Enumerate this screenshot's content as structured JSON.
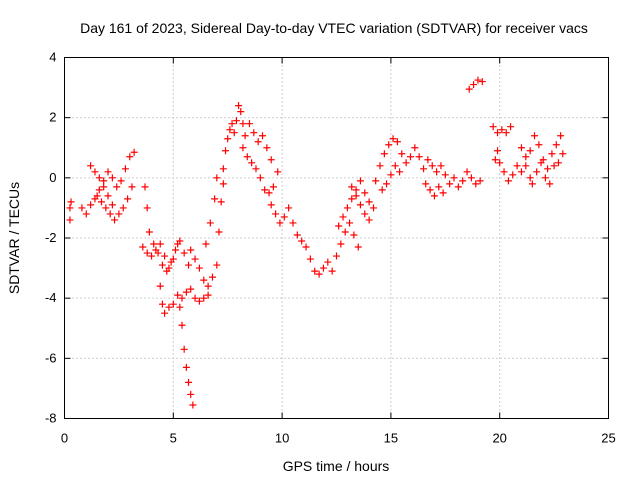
{
  "chart_data": {
    "type": "scatter",
    "title": "Day 161 of 2023, Sidereal Day-to-day VTEC variation (SDTVAR) for receiver vacs",
    "xlabel": "GPS time / hours",
    "ylabel": "SDTVAR / TECUs",
    "xlim": [
      0,
      25
    ],
    "ylim": [
      -8,
      4
    ],
    "xticks": [
      0,
      5,
      10,
      15,
      20,
      25
    ],
    "yticks": [
      -8,
      -6,
      -4,
      -2,
      0,
      2,
      4
    ],
    "xtick_labels": [
      "0",
      "5",
      "10",
      "15",
      "20",
      "25"
    ],
    "ytick_labels": [
      "-8",
      "-6",
      "-4",
      "-2",
      "0",
      "2",
      "4"
    ],
    "grid": true,
    "marker": "+",
    "series": [
      {
        "name": "SDTVAR",
        "color": "#ff0000",
        "points": [
          [
            0.25,
            -1.4
          ],
          [
            0.25,
            -1.0
          ],
          [
            0.3,
            -0.8
          ],
          [
            0.8,
            -1.0
          ],
          [
            1.0,
            -1.2
          ],
          [
            1.2,
            -0.9
          ],
          [
            1.4,
            -0.7
          ],
          [
            1.6,
            -0.4
          ],
          [
            1.8,
            -0.1
          ],
          [
            2.0,
            0.2
          ],
          [
            2.2,
            0.0
          ],
          [
            2.4,
            -0.3
          ],
          [
            2.6,
            -0.1
          ],
          [
            2.8,
            0.3
          ],
          [
            3.0,
            0.7
          ],
          [
            3.2,
            0.85
          ],
          [
            1.5,
            -0.6
          ],
          [
            1.7,
            -0.8
          ],
          [
            1.9,
            -1.0
          ],
          [
            2.1,
            -1.2
          ],
          [
            2.3,
            -1.4
          ],
          [
            2.5,
            -1.2
          ],
          [
            2.7,
            -1.0
          ],
          [
            2.9,
            -0.7
          ],
          [
            3.1,
            -0.3
          ],
          [
            1.2,
            0.4
          ],
          [
            1.4,
            0.2
          ],
          [
            1.6,
            0.0
          ],
          [
            1.8,
            -0.3
          ],
          [
            2.0,
            -0.6
          ],
          [
            2.2,
            -0.9
          ],
          [
            3.7,
            -0.3
          ],
          [
            3.8,
            -1.0
          ],
          [
            3.9,
            -1.8
          ],
          [
            4.1,
            -2.2
          ],
          [
            4.3,
            -2.5
          ],
          [
            4.5,
            -2.9
          ],
          [
            4.7,
            -3.1
          ],
          [
            4.9,
            -2.8
          ],
          [
            5.1,
            -2.4
          ],
          [
            5.3,
            -2.1
          ],
          [
            5.5,
            -2.5
          ],
          [
            5.7,
            -2.9
          ],
          [
            3.6,
            -2.3
          ],
          [
            3.8,
            -2.5
          ],
          [
            4.0,
            -2.6
          ],
          [
            4.2,
            -2.4
          ],
          [
            4.4,
            -2.2
          ],
          [
            4.6,
            -2.6
          ],
          [
            4.8,
            -3.0
          ],
          [
            5.0,
            -2.7
          ],
          [
            5.2,
            -2.2
          ],
          [
            4.4,
            -3.6
          ],
          [
            4.5,
            -4.2
          ],
          [
            4.6,
            -4.5
          ],
          [
            4.8,
            -4.3
          ],
          [
            5.0,
            -4.2
          ],
          [
            5.2,
            -3.9
          ],
          [
            5.4,
            -4.0
          ],
          [
            5.6,
            -3.8
          ],
          [
            5.8,
            -3.7
          ],
          [
            6.0,
            -4.0
          ],
          [
            6.2,
            -4.1
          ],
          [
            6.4,
            -4.0
          ],
          [
            6.6,
            -3.9
          ],
          [
            5.3,
            -4.3
          ],
          [
            5.4,
            -4.9
          ],
          [
            5.5,
            -5.7
          ],
          [
            5.6,
            -6.3
          ],
          [
            5.7,
            -6.8
          ],
          [
            5.8,
            -7.2
          ],
          [
            5.9,
            -7.55
          ],
          [
            5.8,
            -2.4
          ],
          [
            6.0,
            -2.7
          ],
          [
            6.2,
            -3.0
          ],
          [
            6.4,
            -3.4
          ],
          [
            6.6,
            -3.6
          ],
          [
            6.8,
            -3.3
          ],
          [
            7.0,
            -2.9
          ],
          [
            7.1,
            -1.8
          ],
          [
            7.2,
            -0.8
          ],
          [
            7.3,
            -0.2
          ],
          [
            6.5,
            -2.2
          ],
          [
            6.7,
            -1.5
          ],
          [
            6.9,
            -0.7
          ],
          [
            7.0,
            0.0
          ],
          [
            7.3,
            0.3
          ],
          [
            7.4,
            0.9
          ],
          [
            7.5,
            1.3
          ],
          [
            7.6,
            1.6
          ],
          [
            7.7,
            1.8
          ],
          [
            7.8,
            1.5
          ],
          [
            7.9,
            1.9
          ],
          [
            8.0,
            2.4
          ],
          [
            8.1,
            2.2
          ],
          [
            8.2,
            1.8
          ],
          [
            8.3,
            1.4
          ],
          [
            8.5,
            1.8
          ],
          [
            8.7,
            1.5
          ],
          [
            8.9,
            1.2
          ],
          [
            9.1,
            1.4
          ],
          [
            9.3,
            1.0
          ],
          [
            9.5,
            0.6
          ],
          [
            8.2,
            1.0
          ],
          [
            8.4,
            0.7
          ],
          [
            8.6,
            0.5
          ],
          [
            8.8,
            0.3
          ],
          [
            9.0,
            0.0
          ],
          [
            9.2,
            -0.4
          ],
          [
            9.4,
            -0.5
          ],
          [
            9.6,
            -0.3
          ],
          [
            9.8,
            0.2
          ],
          [
            9.5,
            -0.9
          ],
          [
            9.7,
            -1.2
          ],
          [
            9.9,
            -1.5
          ],
          [
            10.1,
            -1.3
          ],
          [
            10.3,
            -1.0
          ],
          [
            10.5,
            -1.5
          ],
          [
            10.7,
            -1.9
          ],
          [
            10.9,
            -2.1
          ],
          [
            11.1,
            -2.3
          ],
          [
            11.3,
            -2.7
          ],
          [
            11.5,
            -3.1
          ],
          [
            11.7,
            -3.2
          ],
          [
            11.9,
            -3.0
          ],
          [
            12.1,
            -2.8
          ],
          [
            12.3,
            -3.1
          ],
          [
            12.5,
            -2.6
          ],
          [
            12.7,
            -2.2
          ],
          [
            12.9,
            -1.8
          ],
          [
            13.1,
            -1.5
          ],
          [
            13.3,
            -1.9
          ],
          [
            13.5,
            -2.3
          ],
          [
            12.6,
            -1.6
          ],
          [
            12.8,
            -1.3
          ],
          [
            13.0,
            -1.0
          ],
          [
            13.2,
            -0.7
          ],
          [
            13.4,
            -0.4
          ],
          [
            13.6,
            -0.1
          ],
          [
            13.8,
            -0.5
          ],
          [
            14.0,
            -0.8
          ],
          [
            14.2,
            -1.0
          ],
          [
            13.2,
            -0.3
          ],
          [
            13.4,
            -0.6
          ],
          [
            13.6,
            -0.9
          ],
          [
            13.8,
            -1.2
          ],
          [
            14.0,
            -1.4
          ],
          [
            14.3,
            -0.1
          ],
          [
            14.5,
            0.4
          ],
          [
            14.7,
            0.8
          ],
          [
            14.9,
            1.1
          ],
          [
            15.1,
            1.3
          ],
          [
            15.3,
            1.2
          ],
          [
            15.5,
            0.8
          ],
          [
            15.7,
            0.5
          ],
          [
            15.9,
            0.7
          ],
          [
            16.1,
            1.0
          ],
          [
            16.3,
            0.7
          ],
          [
            14.6,
            -0.4
          ],
          [
            14.8,
            -0.2
          ],
          [
            15.0,
            0.1
          ],
          [
            15.2,
            0.4
          ],
          [
            15.4,
            0.2
          ],
          [
            16.5,
            0.3
          ],
          [
            16.7,
            0.6
          ],
          [
            16.9,
            0.4
          ],
          [
            17.1,
            0.2
          ],
          [
            17.3,
            0.4
          ],
          [
            17.5,
            0.1
          ],
          [
            17.7,
            -0.2
          ],
          [
            17.9,
            0.0
          ],
          [
            18.1,
            -0.3
          ],
          [
            18.3,
            -0.1
          ],
          [
            18.5,
            0.2
          ],
          [
            18.7,
            0.0
          ],
          [
            18.9,
            -0.2
          ],
          [
            19.1,
            -0.1
          ],
          [
            16.6,
            -0.2
          ],
          [
            16.8,
            -0.4
          ],
          [
            17.0,
            -0.6
          ],
          [
            17.2,
            -0.3
          ],
          [
            17.4,
            -0.5
          ],
          [
            18.6,
            2.95
          ],
          [
            18.8,
            3.1
          ],
          [
            19.0,
            3.25
          ],
          [
            19.2,
            3.2
          ],
          [
            19.7,
            1.7
          ],
          [
            19.9,
            1.5
          ],
          [
            20.1,
            1.6
          ],
          [
            20.3,
            1.5
          ],
          [
            20.5,
            1.7
          ],
          [
            19.8,
            0.6
          ],
          [
            19.9,
            0.9
          ],
          [
            20.0,
            0.5
          ],
          [
            20.2,
            0.2
          ],
          [
            20.4,
            -0.1
          ],
          [
            20.6,
            0.1
          ],
          [
            20.8,
            0.4
          ],
          [
            21.0,
            0.2
          ],
          [
            21.2,
            0.4
          ],
          [
            21.4,
            0.0
          ],
          [
            21.0,
            1.0
          ],
          [
            21.2,
            0.7
          ],
          [
            21.4,
            0.9
          ],
          [
            21.6,
            1.4
          ],
          [
            21.8,
            1.1
          ],
          [
            22.0,
            0.6
          ],
          [
            22.2,
            0.3
          ],
          [
            22.4,
            0.8
          ],
          [
            22.6,
            1.1
          ],
          [
            22.8,
            1.4
          ],
          [
            21.5,
            -0.2
          ],
          [
            21.7,
            0.2
          ],
          [
            21.9,
            0.5
          ],
          [
            22.1,
            0.0
          ],
          [
            22.3,
            -0.2
          ],
          [
            22.5,
            0.4
          ],
          [
            22.7,
            0.5
          ],
          [
            22.9,
            0.8
          ]
        ]
      }
    ]
  }
}
